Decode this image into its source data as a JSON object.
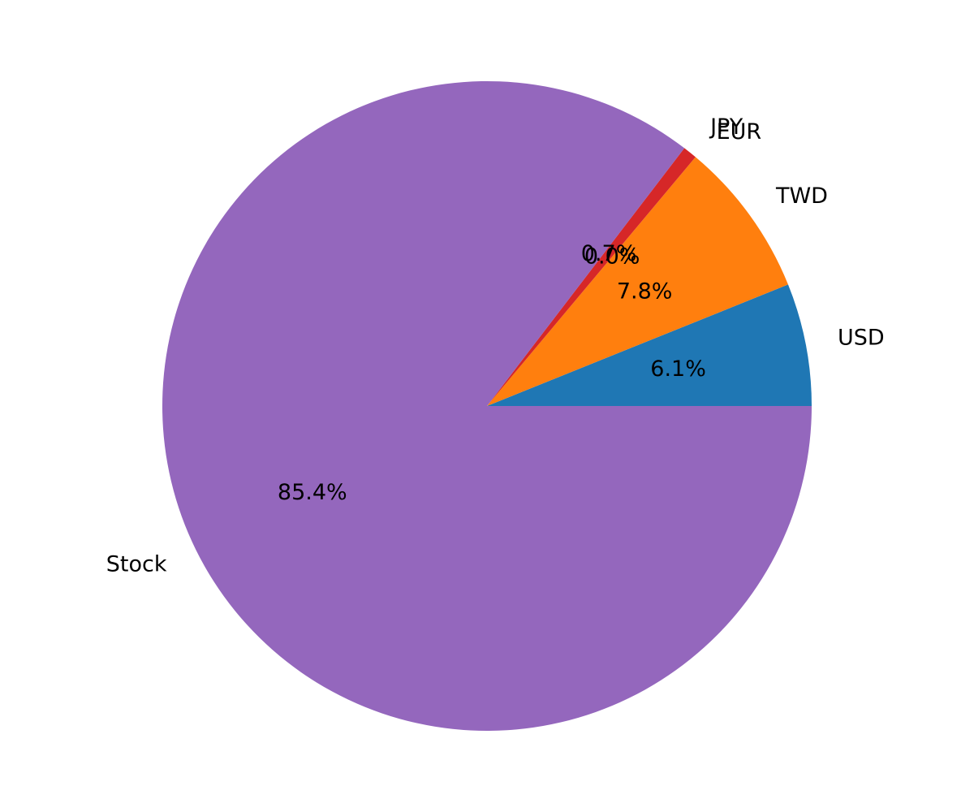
{
  "chart_data": {
    "type": "pie",
    "start_angle_deg": 0,
    "direction": "counterclockwise",
    "slices": [
      {
        "label": "USD",
        "value": 6.1,
        "pct_label": "6.1%",
        "color": "#1f77b4"
      },
      {
        "label": "TWD",
        "value": 7.8,
        "pct_label": "7.8%",
        "color": "#ff7f0e"
      },
      {
        "label": "EUR",
        "value": 0.0,
        "pct_label": "0.0%",
        "color": "#2ca02c"
      },
      {
        "label": "JPY",
        "value": 0.7,
        "pct_label": "0.7%",
        "color": "#d62728"
      },
      {
        "label": "Stock",
        "value": 85.4,
        "pct_label": "85.4%",
        "color": "#9467bd"
      }
    ]
  }
}
